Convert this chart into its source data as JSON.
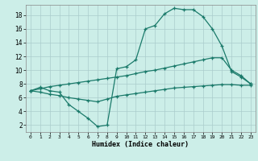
{
  "xlabel": "Humidex (Indice chaleur)",
  "background_color": "#cceee8",
  "grid_color": "#aacccc",
  "line_color": "#1a7a6a",
  "xlim": [
    -0.5,
    23.5
  ],
  "ylim": [
    1,
    19.5
  ],
  "yticks": [
    2,
    4,
    6,
    8,
    10,
    12,
    14,
    16,
    18
  ],
  "xticks": [
    0,
    1,
    2,
    3,
    4,
    5,
    6,
    7,
    8,
    9,
    10,
    11,
    12,
    13,
    14,
    15,
    16,
    17,
    18,
    19,
    20,
    21,
    22,
    23
  ],
  "line1_x": [
    0,
    1,
    2,
    3,
    4,
    5,
    6,
    7,
    8,
    9,
    10,
    11,
    12,
    13,
    14,
    15,
    16,
    17,
    18,
    19,
    20,
    21,
    22,
    23
  ],
  "line1_y": [
    7.0,
    7.5,
    7.0,
    6.8,
    5.0,
    4.0,
    3.0,
    1.8,
    2.0,
    10.2,
    10.5,
    11.5,
    16.0,
    16.5,
    18.2,
    19.0,
    18.8,
    18.8,
    17.8,
    16.0,
    13.5,
    9.8,
    9.0,
    8.0
  ],
  "line2_x": [
    0,
    1,
    2,
    3,
    4,
    5,
    6,
    7,
    8,
    9,
    10,
    11,
    12,
    13,
    14,
    15,
    16,
    17,
    18,
    19,
    20,
    21,
    22,
    23
  ],
  "line2_y": [
    7.0,
    7.3,
    7.6,
    7.8,
    8.0,
    8.2,
    8.4,
    8.6,
    8.8,
    9.0,
    9.2,
    9.5,
    9.8,
    10.0,
    10.3,
    10.6,
    10.9,
    11.2,
    11.5,
    11.8,
    11.8,
    10.0,
    9.2,
    8.0
  ],
  "line3_x": [
    0,
    1,
    2,
    3,
    4,
    5,
    6,
    7,
    8,
    9,
    10,
    11,
    12,
    13,
    14,
    15,
    16,
    17,
    18,
    19,
    20,
    21,
    22,
    23
  ],
  "line3_y": [
    7.0,
    6.8,
    6.5,
    6.3,
    6.0,
    5.8,
    5.6,
    5.4,
    5.8,
    6.2,
    6.4,
    6.6,
    6.8,
    7.0,
    7.2,
    7.4,
    7.5,
    7.6,
    7.7,
    7.8,
    7.9,
    7.9,
    7.8,
    7.8
  ]
}
